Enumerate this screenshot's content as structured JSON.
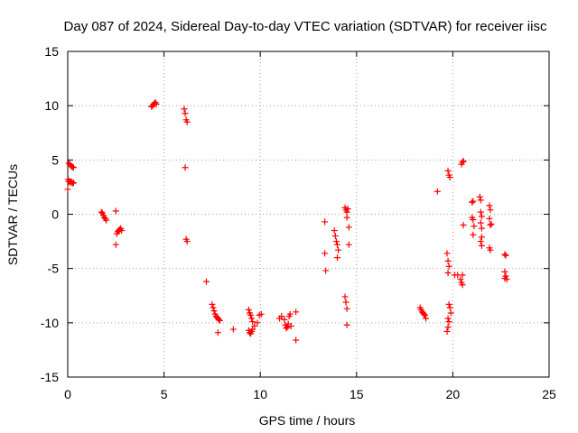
{
  "chart_data": {
    "type": "scatter",
    "title": "Day 087 of 2024, Sidereal Day-to-day VTEC variation (SDTVAR) for receiver iisc",
    "xlabel": "GPS time / hours",
    "ylabel": "SDTVAR / TECUs",
    "xlim": [
      0,
      25
    ],
    "ylim": [
      -15,
      15
    ],
    "xticks": [
      0,
      5,
      10,
      15,
      20,
      25
    ],
    "yticks": [
      -15,
      -10,
      -5,
      0,
      5,
      10,
      15
    ],
    "xtick_labels": [
      "0",
      "5",
      "10",
      "15",
      "20",
      "25"
    ],
    "ytick_labels": [
      "-15",
      "-10",
      "-5",
      "0",
      "5",
      "10",
      "15"
    ],
    "grid": true,
    "marker": "+",
    "marker_color": "#ff0000",
    "series": [
      {
        "name": "SDTVAR",
        "points": [
          [
            0.05,
            4.7
          ],
          [
            0.1,
            4.6
          ],
          [
            0.15,
            4.5
          ],
          [
            0.2,
            4.4
          ],
          [
            0.25,
            4.35
          ],
          [
            0.3,
            4.3
          ],
          [
            0.02,
            3.2
          ],
          [
            0.05,
            3.0
          ],
          [
            0.1,
            3.05
          ],
          [
            0.15,
            2.9
          ],
          [
            0.2,
            3.0
          ],
          [
            0.25,
            2.85
          ],
          [
            0.3,
            2.9
          ],
          [
            0.0,
            2.3
          ],
          [
            1.75,
            0.2
          ],
          [
            1.8,
            0.1
          ],
          [
            1.85,
            -0.1
          ],
          [
            1.9,
            -0.3
          ],
          [
            1.95,
            -0.4
          ],
          [
            2.0,
            -0.55
          ],
          [
            2.5,
            0.3
          ],
          [
            2.5,
            -2.8
          ],
          [
            2.55,
            -1.8
          ],
          [
            2.6,
            -1.6
          ],
          [
            2.65,
            -1.5
          ],
          [
            2.7,
            -1.4
          ],
          [
            2.75,
            -1.3
          ],
          [
            2.8,
            -1.5
          ],
          [
            4.35,
            9.9
          ],
          [
            4.4,
            10.0
          ],
          [
            4.45,
            10.1
          ],
          [
            4.5,
            10.2
          ],
          [
            4.55,
            10.3
          ],
          [
            4.6,
            10.15
          ],
          [
            6.05,
            9.7
          ],
          [
            6.1,
            9.3
          ],
          [
            6.15,
            8.7
          ],
          [
            6.2,
            8.5
          ],
          [
            6.1,
            4.3
          ],
          [
            6.15,
            -2.3
          ],
          [
            6.2,
            -2.5
          ],
          [
            7.2,
            -6.2
          ],
          [
            7.5,
            -8.3
          ],
          [
            7.55,
            -8.6
          ],
          [
            7.6,
            -8.9
          ],
          [
            7.65,
            -9.2
          ],
          [
            7.7,
            -9.4
          ],
          [
            7.75,
            -9.5
          ],
          [
            7.8,
            -9.6
          ],
          [
            7.85,
            -9.7
          ],
          [
            7.9,
            -9.8
          ],
          [
            7.8,
            -10.9
          ],
          [
            8.6,
            -10.6
          ],
          [
            9.4,
            -8.8
          ],
          [
            9.45,
            -9.1
          ],
          [
            9.5,
            -9.3
          ],
          [
            9.55,
            -9.6
          ],
          [
            9.6,
            -9.9
          ],
          [
            9.4,
            -10.7
          ],
          [
            9.45,
            -10.9
          ],
          [
            9.5,
            -11.0
          ],
          [
            9.55,
            -10.8
          ],
          [
            9.6,
            -10.6
          ],
          [
            9.7,
            -10.3
          ],
          [
            9.85,
            -10.0
          ],
          [
            9.95,
            -9.3
          ],
          [
            10.05,
            -9.2
          ],
          [
            11.0,
            -9.6
          ],
          [
            11.1,
            -9.4
          ],
          [
            11.25,
            -9.7
          ],
          [
            11.3,
            -10.2
          ],
          [
            11.35,
            -10.5
          ],
          [
            11.4,
            -10.4
          ],
          [
            11.45,
            -10.1
          ],
          [
            11.5,
            -9.4
          ],
          [
            11.55,
            -9.2
          ],
          [
            11.6,
            -10.3
          ],
          [
            11.85,
            -9.0
          ],
          [
            11.85,
            -11.6
          ],
          [
            13.35,
            -0.7
          ],
          [
            13.35,
            -3.6
          ],
          [
            13.4,
            -5.2
          ],
          [
            13.85,
            -1.5
          ],
          [
            13.9,
            -2.0
          ],
          [
            13.95,
            -2.5
          ],
          [
            14.0,
            -2.8
          ],
          [
            14.05,
            -3.3
          ],
          [
            14.0,
            -4.0
          ],
          [
            14.4,
            0.6
          ],
          [
            14.45,
            0.4
          ],
          [
            14.5,
            0.2
          ],
          [
            14.5,
            -0.3
          ],
          [
            14.55,
            0.5
          ],
          [
            14.6,
            -1.2
          ],
          [
            14.6,
            -2.8
          ],
          [
            14.4,
            -7.6
          ],
          [
            14.45,
            -8.1
          ],
          [
            14.5,
            -8.7
          ],
          [
            14.5,
            -10.2
          ],
          [
            18.3,
            -8.6
          ],
          [
            18.35,
            -8.8
          ],
          [
            18.4,
            -9.0
          ],
          [
            18.45,
            -9.1
          ],
          [
            18.5,
            -9.2
          ],
          [
            18.55,
            -9.3
          ],
          [
            18.6,
            -9.6
          ],
          [
            19.2,
            2.1
          ],
          [
            19.75,
            4.0
          ],
          [
            19.8,
            3.6
          ],
          [
            19.85,
            3.4
          ],
          [
            19.7,
            -3.6
          ],
          [
            19.75,
            -4.3
          ],
          [
            19.8,
            -4.8
          ],
          [
            19.75,
            -5.4
          ],
          [
            19.8,
            -8.3
          ],
          [
            19.85,
            -8.6
          ],
          [
            19.9,
            -9.1
          ],
          [
            19.75,
            -9.6
          ],
          [
            19.8,
            -9.9
          ],
          [
            19.75,
            -10.4
          ],
          [
            19.7,
            -10.8
          ],
          [
            20.1,
            -5.6
          ],
          [
            20.25,
            -5.6
          ],
          [
            20.4,
            -6.0
          ],
          [
            20.45,
            -6.3
          ],
          [
            20.5,
            -6.5
          ],
          [
            20.5,
            -5.6
          ],
          [
            20.55,
            -1.0
          ],
          [
            20.45,
            4.6
          ],
          [
            20.5,
            4.8
          ],
          [
            20.55,
            4.9
          ],
          [
            21.0,
            1.1
          ],
          [
            21.05,
            1.2
          ],
          [
            21.0,
            -0.3
          ],
          [
            21.05,
            -0.5
          ],
          [
            21.1,
            -1.1
          ],
          [
            21.05,
            -1.9
          ],
          [
            21.4,
            1.6
          ],
          [
            21.45,
            1.3
          ],
          [
            21.45,
            0.2
          ],
          [
            21.5,
            -0.2
          ],
          [
            21.45,
            -0.8
          ],
          [
            21.5,
            -1.3
          ],
          [
            21.5,
            -2.1
          ],
          [
            21.45,
            -2.5
          ],
          [
            21.5,
            -2.9
          ],
          [
            21.9,
            0.8
          ],
          [
            21.95,
            0.4
          ],
          [
            21.9,
            -0.4
          ],
          [
            22.0,
            -0.9
          ],
          [
            21.95,
            -1.0
          ],
          [
            21.9,
            -3.1
          ],
          [
            21.95,
            -3.3
          ],
          [
            22.7,
            -3.7
          ],
          [
            22.75,
            -3.8
          ],
          [
            22.7,
            -5.3
          ],
          [
            22.75,
            -5.7
          ],
          [
            22.8,
            -6.0
          ],
          [
            22.7,
            -5.9
          ]
        ]
      }
    ]
  }
}
